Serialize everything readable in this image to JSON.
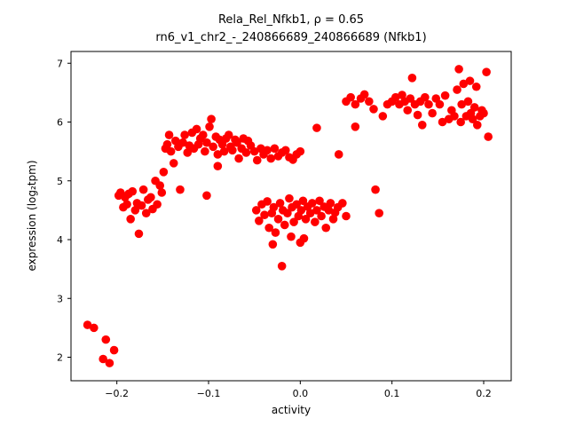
{
  "figure": {
    "background": "#ffffff",
    "axes_color": "#000000"
  },
  "chart_data": {
    "type": "scatter",
    "title_line1": "Rela_Rel_Nfkb1, ρ = 0.65",
    "title_line2": "rn6_v1_chr2_-_240866689_240866689 (Nfkb1)",
    "xlabel": "activity",
    "ylabel": "expression (log₂tpm)",
    "xlim": [
      -0.25,
      0.23
    ],
    "ylim": [
      1.6,
      7.2
    ],
    "x_ticks": [
      -0.2,
      -0.1,
      0.0,
      0.1,
      0.2
    ],
    "x_tick_labels": [
      "−0.2",
      "−0.1",
      "0.0",
      "0.1",
      "0.2"
    ],
    "y_ticks": [
      2,
      3,
      4,
      5,
      6,
      7
    ],
    "y_tick_labels": [
      "2",
      "3",
      "4",
      "5",
      "6",
      "7"
    ],
    "marker_color": "#ff0000",
    "marker_radius": 4.8,
    "grid": false,
    "legend_position": "none",
    "points": [
      [
        -0.232,
        2.55
      ],
      [
        -0.225,
        2.5
      ],
      [
        -0.212,
        2.3
      ],
      [
        -0.215,
        1.97
      ],
      [
        -0.203,
        2.12
      ],
      [
        -0.208,
        1.9
      ],
      [
        -0.198,
        4.75
      ],
      [
        -0.196,
        4.8
      ],
      [
        -0.193,
        4.55
      ],
      [
        -0.191,
        4.72
      ],
      [
        -0.189,
        4.6
      ],
      [
        -0.187,
        4.78
      ],
      [
        -0.185,
        4.35
      ],
      [
        -0.183,
        4.82
      ],
      [
        -0.18,
        4.5
      ],
      [
        -0.178,
        4.62
      ],
      [
        -0.176,
        4.1
      ],
      [
        -0.173,
        4.58
      ],
      [
        -0.171,
        4.85
      ],
      [
        -0.168,
        4.45
      ],
      [
        -0.166,
        4.68
      ],
      [
        -0.163,
        4.72
      ],
      [
        -0.161,
        4.52
      ],
      [
        -0.158,
        5.0
      ],
      [
        -0.156,
        4.6
      ],
      [
        -0.153,
        4.92
      ],
      [
        -0.151,
        4.8
      ],
      [
        -0.149,
        5.15
      ],
      [
        -0.147,
        5.55
      ],
      [
        -0.145,
        5.62
      ],
      [
        -0.143,
        5.78
      ],
      [
        -0.141,
        5.5
      ],
      [
        -0.138,
        5.3
      ],
      [
        -0.136,
        5.68
      ],
      [
        -0.133,
        5.58
      ],
      [
        -0.131,
        4.85
      ],
      [
        -0.128,
        5.65
      ],
      [
        -0.126,
        5.78
      ],
      [
        -0.123,
        5.48
      ],
      [
        -0.121,
        5.6
      ],
      [
        -0.118,
        5.82
      ],
      [
        -0.116,
        5.55
      ],
      [
        -0.113,
        5.88
      ],
      [
        -0.111,
        5.62
      ],
      [
        -0.109,
        5.72
      ],
      [
        -0.106,
        5.78
      ],
      [
        -0.104,
        5.5
      ],
      [
        -0.102,
        5.65
      ],
      [
        -0.099,
        5.92
      ],
      [
        -0.097,
        6.05
      ],
      [
        -0.095,
        5.58
      ],
      [
        -0.092,
        5.75
      ],
      [
        -0.09,
        5.45
      ],
      [
        -0.088,
        5.7
      ],
      [
        -0.085,
        5.62
      ],
      [
        -0.083,
        5.5
      ],
      [
        -0.081,
        5.72
      ],
      [
        -0.078,
        5.78
      ],
      [
        -0.076,
        5.58
      ],
      [
        -0.074,
        5.52
      ],
      [
        -0.071,
        5.7
      ],
      [
        -0.069,
        5.65
      ],
      [
        -0.067,
        5.38
      ],
      [
        -0.064,
        5.55
      ],
      [
        -0.062,
        5.72
      ],
      [
        -0.059,
        5.48
      ],
      [
        -0.057,
        5.68
      ],
      [
        -0.054,
        5.6
      ],
      [
        -0.102,
        4.75
      ],
      [
        -0.09,
        5.25
      ],
      [
        -0.05,
        5.5
      ],
      [
        -0.047,
        5.35
      ],
      [
        -0.043,
        5.55
      ],
      [
        -0.04,
        5.45
      ],
      [
        -0.036,
        5.52
      ],
      [
        -0.032,
        5.38
      ],
      [
        -0.028,
        5.55
      ],
      [
        -0.024,
        5.42
      ],
      [
        -0.02,
        5.48
      ],
      [
        -0.016,
        5.52
      ],
      [
        -0.012,
        5.4
      ],
      [
        -0.008,
        5.36
      ],
      [
        -0.004,
        5.45
      ],
      [
        0.0,
        5.5
      ],
      [
        0.018,
        5.9
      ],
      [
        -0.048,
        4.5
      ],
      [
        -0.045,
        4.32
      ],
      [
        -0.042,
        4.6
      ],
      [
        -0.039,
        4.42
      ],
      [
        -0.036,
        4.65
      ],
      [
        -0.034,
        4.2
      ],
      [
        -0.031,
        4.45
      ],
      [
        -0.029,
        4.55
      ],
      [
        -0.027,
        4.12
      ],
      [
        -0.024,
        4.35
      ],
      [
        -0.022,
        4.62
      ],
      [
        -0.019,
        4.5
      ],
      [
        -0.017,
        4.25
      ],
      [
        -0.014,
        4.45
      ],
      [
        -0.012,
        4.7
      ],
      [
        -0.009,
        4.55
      ],
      [
        -0.007,
        4.3
      ],
      [
        -0.004,
        4.6
      ],
      [
        -0.002,
        4.4
      ],
      [
        0.001,
        4.5
      ],
      [
        0.003,
        4.66
      ],
      [
        0.006,
        4.35
      ],
      [
        0.008,
        4.56
      ],
      [
        0.011,
        4.45
      ],
      [
        0.013,
        4.62
      ],
      [
        0.016,
        4.3
      ],
      [
        0.018,
        4.5
      ],
      [
        0.021,
        4.66
      ],
      [
        0.023,
        4.4
      ],
      [
        0.026,
        4.56
      ],
      [
        0.028,
        4.2
      ],
      [
        0.031,
        4.5
      ],
      [
        0.033,
        4.62
      ],
      [
        0.036,
        4.35
      ],
      [
        0.038,
        4.46
      ],
      [
        -0.03,
        3.92
      ],
      [
        -0.02,
        3.55
      ],
      [
        0.0,
        3.95
      ],
      [
        0.004,
        4.02
      ],
      [
        -0.01,
        4.05
      ],
      [
        0.041,
        4.55
      ],
      [
        0.046,
        4.62
      ],
      [
        0.05,
        4.4
      ],
      [
        0.042,
        5.45
      ],
      [
        0.05,
        6.35
      ],
      [
        0.055,
        6.42
      ],
      [
        0.06,
        6.3
      ],
      [
        0.066,
        6.4
      ],
      [
        0.07,
        6.47
      ],
      [
        0.06,
        5.92
      ],
      [
        0.075,
        6.35
      ],
      [
        0.082,
        4.85
      ],
      [
        0.086,
        4.45
      ],
      [
        0.08,
        6.22
      ],
      [
        0.09,
        6.1
      ],
      [
        0.095,
        6.3
      ],
      [
        0.1,
        6.35
      ],
      [
        0.104,
        6.42
      ],
      [
        0.108,
        6.3
      ],
      [
        0.111,
        6.46
      ],
      [
        0.114,
        6.35
      ],
      [
        0.117,
        6.2
      ],
      [
        0.12,
        6.4
      ],
      [
        0.122,
        6.75
      ],
      [
        0.125,
        6.3
      ],
      [
        0.128,
        6.12
      ],
      [
        0.131,
        6.35
      ],
      [
        0.133,
        5.95
      ],
      [
        0.136,
        6.42
      ],
      [
        0.14,
        6.3
      ],
      [
        0.144,
        6.15
      ],
      [
        0.148,
        6.4
      ],
      [
        0.152,
        6.3
      ],
      [
        0.155,
        6.0
      ],
      [
        0.158,
        6.45
      ],
      [
        0.162,
        6.05
      ],
      [
        0.165,
        6.2
      ],
      [
        0.168,
        6.1
      ],
      [
        0.171,
        6.55
      ],
      [
        0.173,
        6.9
      ],
      [
        0.176,
        6.3
      ],
      [
        0.178,
        6.65
      ],
      [
        0.181,
        6.1
      ],
      [
        0.183,
        6.35
      ],
      [
        0.186,
        6.15
      ],
      [
        0.188,
        6.05
      ],
      [
        0.19,
        6.25
      ],
      [
        0.193,
        5.95
      ],
      [
        0.196,
        6.1
      ],
      [
        0.198,
        6.2
      ],
      [
        0.2,
        6.15
      ],
      [
        0.203,
        6.85
      ],
      [
        0.205,
        5.75
      ],
      [
        0.175,
        6.0
      ],
      [
        0.185,
        6.7
      ],
      [
        0.192,
        6.6
      ]
    ]
  }
}
